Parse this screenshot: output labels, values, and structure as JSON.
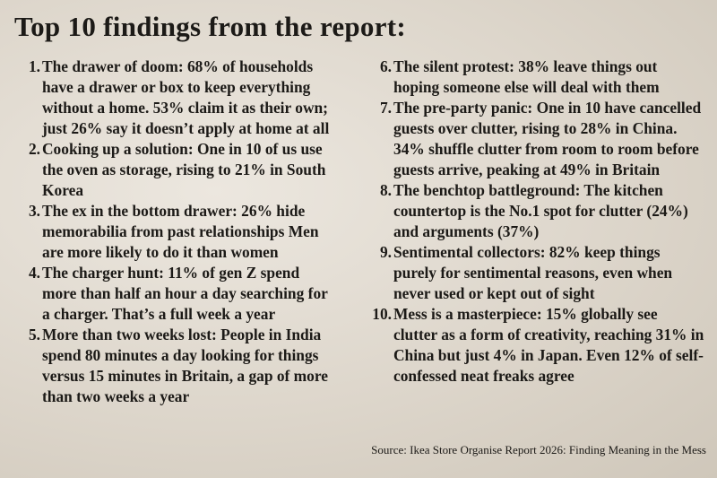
{
  "title": "Top 10 findings from the report:",
  "findings": [
    {
      "number": "1.",
      "text": "The drawer of doom: 68% of households have a drawer or box to keep everything without a home. 53% claim it as their own; just 26% say it doesn’t apply at home at all"
    },
    {
      "number": "2.",
      "text": "Cooking up a solution: One in 10 of us use the oven as storage, rising to 21% in South Korea"
    },
    {
      "number": "3.",
      "text": "The ex in the bottom drawer: 26% hide memorabilia from past relationships Men are more likely to do it than women"
    },
    {
      "number": "4.",
      "text": "The charger hunt: 11% of gen Z spend more than half an hour a day searching for a charger. That’s a full week a year"
    },
    {
      "number": "5.",
      "text": "More than two weeks lost: People in India spend 80 minutes a day looking for things versus 15 minutes in Britain, a gap of more than two weeks a year"
    },
    {
      "number": "6.",
      "text": "The silent protest: 38% leave things out hoping someone else will deal with them"
    },
    {
      "number": "7.",
      "text": "The pre-party panic: One in 10 have cancelled guests over clutter, rising to 28% in China. 34% shuffle clutter from room to room before guests arrive, peaking at 49% in Britain"
    },
    {
      "number": "8.",
      "text": "The benchtop battleground: The kitchen countertop is the No.1 spot for clutter (24%) and arguments (37%)"
    },
    {
      "number": "9.",
      "text": "Sentimental collectors: 82% keep things purely for sentimental reasons, even when never used or kept out of sight"
    },
    {
      "number": "10.",
      "text": "Mess is a masterpiece: 15% globally see clutter as a form of creativity, reaching 31% in China but just 4% in Japan. Even 12% of self-confessed neat freaks agree"
    }
  ],
  "source": "Source: Ikea Store Organise Report 2026: Finding Meaning in the Mess"
}
